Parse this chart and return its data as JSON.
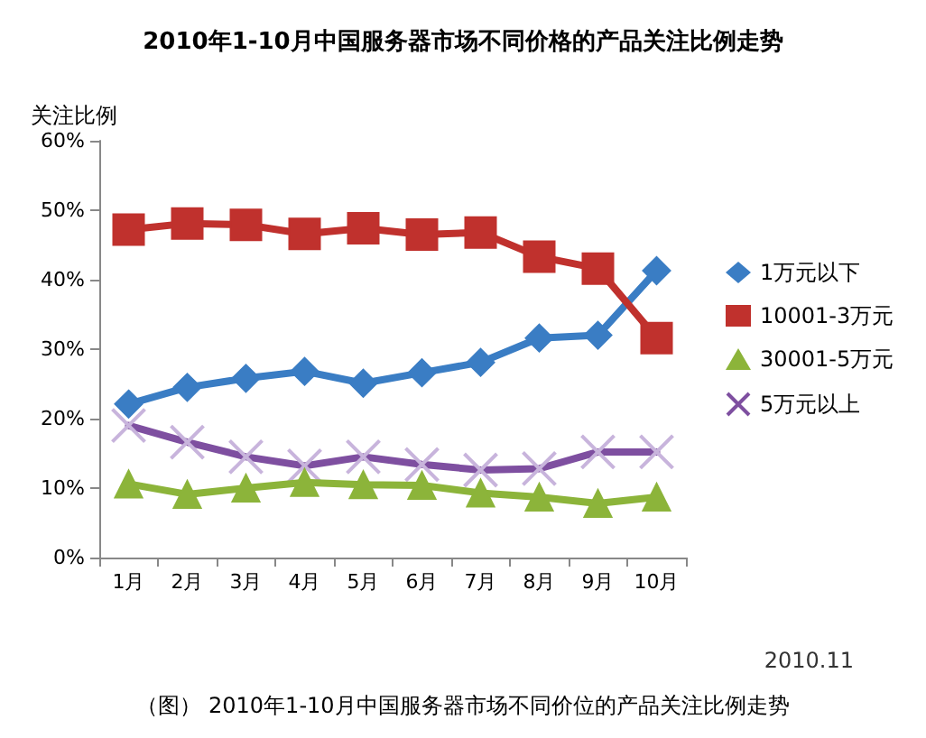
{
  "chart_data": {
    "type": "line",
    "title": "2010年1-10月中国服务器市场不同价格的产品关注比例走势",
    "ylabel": "关注比例",
    "categories": [
      "1月",
      "2月",
      "3月",
      "4月",
      "5月",
      "6月",
      "7月",
      "8月",
      "9月",
      "10月"
    ],
    "series": [
      {
        "name": "1万元以下",
        "color": "#3a7dc4",
        "marker": "diamond",
        "values": [
          22.1,
          24.5,
          25.8,
          26.8,
          25.1,
          26.6,
          28.1,
          31.6,
          32.0,
          41.3
        ]
      },
      {
        "name": "10001-3万元",
        "color": "#c0312d",
        "marker": "square",
        "values": [
          47.2,
          48.1,
          47.9,
          46.6,
          47.4,
          46.5,
          46.8,
          43.3,
          41.6,
          31.6
        ]
      },
      {
        "name": "30001-5万元",
        "color": "#8cb43a",
        "marker": "triangle",
        "values": [
          10.6,
          9.1,
          10.0,
          10.8,
          10.5,
          10.4,
          9.3,
          8.7,
          7.8,
          8.7
        ]
      },
      {
        "name": "5万元以上",
        "color": "#7e4fa0",
        "marker": "cross",
        "values": [
          19.0,
          16.6,
          14.5,
          13.2,
          14.5,
          13.4,
          12.6,
          12.8,
          15.2,
          15.2
        ]
      }
    ],
    "ylim": [
      0,
      60
    ],
    "yticks": [
      {
        "value": 0,
        "label": "0%"
      },
      {
        "value": 10,
        "label": "10%"
      },
      {
        "value": 20,
        "label": "20%"
      },
      {
        "value": 30,
        "label": "30%"
      },
      {
        "value": 40,
        "label": "40%"
      },
      {
        "value": 50,
        "label": "50%"
      },
      {
        "value": 60,
        "label": "60%"
      }
    ],
    "grid": false,
    "legend": "right",
    "line_style": "solid",
    "annotations": [
      "2010.11",
      "（图） 2010年1-10月中国服务器市场不同价位的产品关注比例走势"
    ]
  }
}
